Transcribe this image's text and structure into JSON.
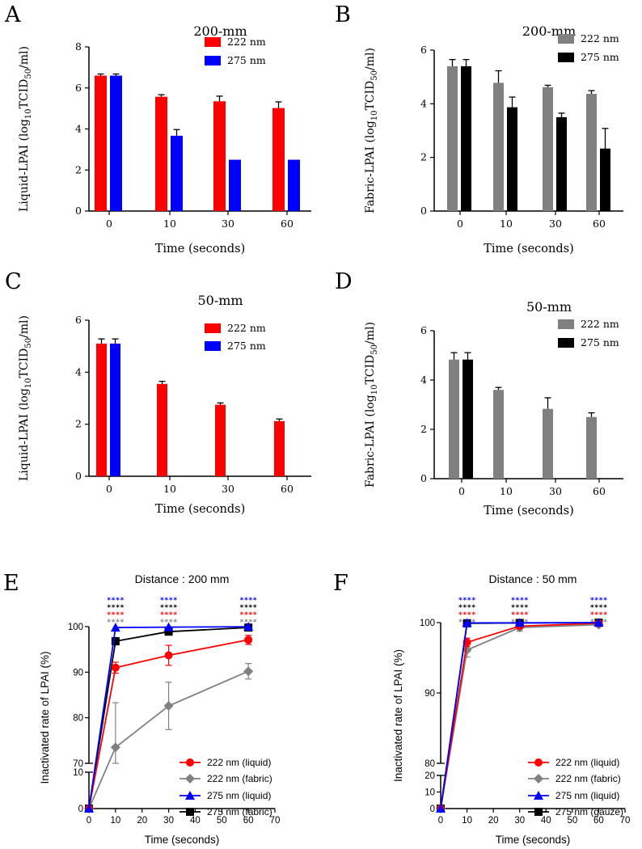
{
  "chart_data": [
    {
      "id": "A",
      "type": "bar",
      "title": "200-mm",
      "xlabel": "Time (seconds)",
      "ylabel": "Liquid-LPAI (log10TCID50/ml)",
      "categories": [
        "0",
        "10",
        "30",
        "60"
      ],
      "ylim": [
        0,
        8
      ],
      "yticks": [
        0,
        2,
        4,
        6,
        8
      ],
      "series": [
        {
          "name": "222 nm",
          "color": "#ff0000",
          "values": [
            6.6,
            5.57,
            5.35,
            5.02
          ],
          "errors": [
            0.08,
            0.1,
            0.25,
            0.3
          ]
        },
        {
          "name": "275 nm",
          "color": "#0000ff",
          "values": [
            6.6,
            3.67,
            2.5,
            2.5
          ],
          "errors": [
            0.08,
            0.3,
            0,
            0
          ]
        }
      ],
      "legend_position": "top-right"
    },
    {
      "id": "B",
      "type": "bar",
      "title": "200-mm",
      "xlabel": "Time (seconds)",
      "ylabel": "Fabric-LPAI (log10TCID50/ml)",
      "categories": [
        "0",
        "10",
        "30",
        "60"
      ],
      "ylim": [
        0,
        6
      ],
      "yticks": [
        0,
        2,
        4,
        6
      ],
      "series": [
        {
          "name": "222 nm",
          "color": "#808080",
          "values": [
            5.4,
            4.78,
            4.62,
            4.37
          ],
          "errors": [
            0.25,
            0.45,
            0.07,
            0.12
          ]
        },
        {
          "name": "275 nm",
          "color": "#000000",
          "values": [
            5.4,
            3.87,
            3.5,
            2.33
          ],
          "errors": [
            0.25,
            0.38,
            0.15,
            0.75
          ]
        }
      ],
      "legend_position": "top-right"
    },
    {
      "id": "C",
      "type": "bar",
      "title": "50-mm",
      "xlabel": "Time (seconds)",
      "ylabel": "Liquid-LPAI (log10TCID50/ml)",
      "categories": [
        "0",
        "10",
        "30",
        "60"
      ],
      "ylim": [
        0,
        6
      ],
      "yticks": [
        0,
        2,
        4,
        6
      ],
      "series": [
        {
          "name": "222 nm",
          "color": "#ff0000",
          "values": [
            5.1,
            3.55,
            2.75,
            2.12
          ],
          "errors": [
            0.18,
            0.1,
            0.07,
            0.08
          ]
        },
        {
          "name": "275 nm",
          "color": "#0000ff",
          "values": [
            5.1,
            0,
            0,
            0
          ],
          "errors": [
            0.18,
            0,
            0,
            0
          ]
        }
      ],
      "legend_position": "top-right"
    },
    {
      "id": "D",
      "type": "bar",
      "title": "50-mm",
      "xlabel": "Time (seconds)",
      "ylabel": "Fabric-LPAI (log10TCID50/ml)",
      "categories": [
        "0",
        "10",
        "30",
        "60"
      ],
      "ylim": [
        0,
        6
      ],
      "yticks": [
        0,
        2,
        4,
        6
      ],
      "series": [
        {
          "name": "222 nm",
          "color": "#808080",
          "values": [
            4.83,
            3.6,
            2.83,
            2.5
          ],
          "errors": [
            0.28,
            0.1,
            0.45,
            0.17
          ]
        },
        {
          "name": "275 nm",
          "color": "#000000",
          "values": [
            4.83,
            0,
            0,
            0
          ],
          "errors": [
            0.28,
            0,
            0,
            0
          ]
        }
      ],
      "legend_position": "top-right"
    },
    {
      "id": "E",
      "type": "line",
      "title": "Distance : 200 mm",
      "xlabel": "Time (seconds)",
      "ylabel": "Inactivated rate of LPAI (%)",
      "x": [
        0,
        10,
        30,
        60
      ],
      "xlim": [
        0,
        70
      ],
      "xticks": [
        0,
        10,
        20,
        30,
        40,
        50,
        60,
        70
      ],
      "ylim_lower": [
        0,
        10
      ],
      "yticks_lower": [
        0,
        10
      ],
      "ylim_upper": [
        70,
        100
      ],
      "yticks_upper": [
        70,
        80,
        90,
        100
      ],
      "series": [
        {
          "name": "222 nm (liquid)",
          "color": "#ff0000",
          "marker": "circle",
          "values": [
            0,
            91,
            93.7,
            97.1
          ],
          "errors": [
            0,
            1.2,
            2.2,
            1.0
          ]
        },
        {
          "name": "222 nm (fabric)",
          "color": "#808080",
          "marker": "diamond",
          "values": [
            0,
            73.5,
            82.6,
            90.2
          ],
          "errors": [
            0,
            9.8,
            5.2,
            1.7
          ]
        },
        {
          "name": "275 nm (liquid)",
          "color": "#0000ff",
          "marker": "triangle",
          "values": [
            0,
            99.8,
            99.9,
            99.99
          ],
          "errors": [
            0,
            0,
            0,
            0
          ]
        },
        {
          "name": "275 nm (fabric)",
          "color": "#000000",
          "marker": "square",
          "values": [
            0,
            96.8,
            98.9,
            99.8
          ],
          "errors": [
            0,
            0.8,
            0.3,
            0.2
          ]
        }
      ],
      "significance": {
        "rows": [
          {
            "color": "#0000ff",
            "text": "****"
          },
          {
            "color": "#000000",
            "text": "****"
          },
          {
            "color": "#ff0000",
            "text": "****"
          },
          {
            "color": "#808080",
            "text": "****"
          }
        ],
        "at_x": [
          10,
          30,
          60
        ]
      },
      "legend_position": "bottom-right"
    },
    {
      "id": "F",
      "type": "line",
      "title": "Distance : 50 mm",
      "xlabel": "Time (seconds)",
      "ylabel": "Inactivated rate of LPAI (%)",
      "x": [
        0,
        10,
        30,
        60
      ],
      "xlim": [
        0,
        70
      ],
      "xticks": [
        0,
        10,
        20,
        30,
        40,
        50,
        60,
        70
      ],
      "ylim_lower": [
        0,
        20
      ],
      "yticks_lower": [
        0,
        10,
        20
      ],
      "ylim_upper": [
        80,
        100
      ],
      "yticks_upper": [
        80,
        90,
        100
      ],
      "series": [
        {
          "name": "222 nm (liquid)",
          "color": "#ff0000",
          "marker": "circle",
          "values": [
            0,
            97.2,
            99.5,
            99.9
          ],
          "errors": [
            0,
            0.6,
            0.3,
            0.1
          ]
        },
        {
          "name": "222 nm (fabric)",
          "color": "#808080",
          "marker": "diamond",
          "values": [
            0,
            96.1,
            99.3,
            99.7
          ],
          "errors": [
            0,
            1.0,
            0.5,
            0.2
          ]
        },
        {
          "name": "275 nm (liquid)",
          "color": "#0000ff",
          "marker": "triangle",
          "values": [
            0,
            99.95,
            99.97,
            99.99
          ],
          "errors": [
            0,
            0,
            0,
            0
          ]
        },
        {
          "name": "275 nm (gauze)",
          "color": "#000000",
          "marker": "square",
          "values": [
            0,
            99.9,
            99.95,
            99.99
          ],
          "errors": [
            0,
            0.1,
            0.05,
            0.01
          ]
        }
      ],
      "significance": {
        "rows": [
          {
            "color": "#0000ff",
            "text": "****"
          },
          {
            "color": "#000000",
            "text": "****"
          },
          {
            "color": "#ff0000",
            "text": "****"
          },
          {
            "color": "#808080",
            "text": "****"
          }
        ],
        "at_x": [
          10,
          30,
          60
        ]
      },
      "legend_position": "bottom-right"
    }
  ]
}
